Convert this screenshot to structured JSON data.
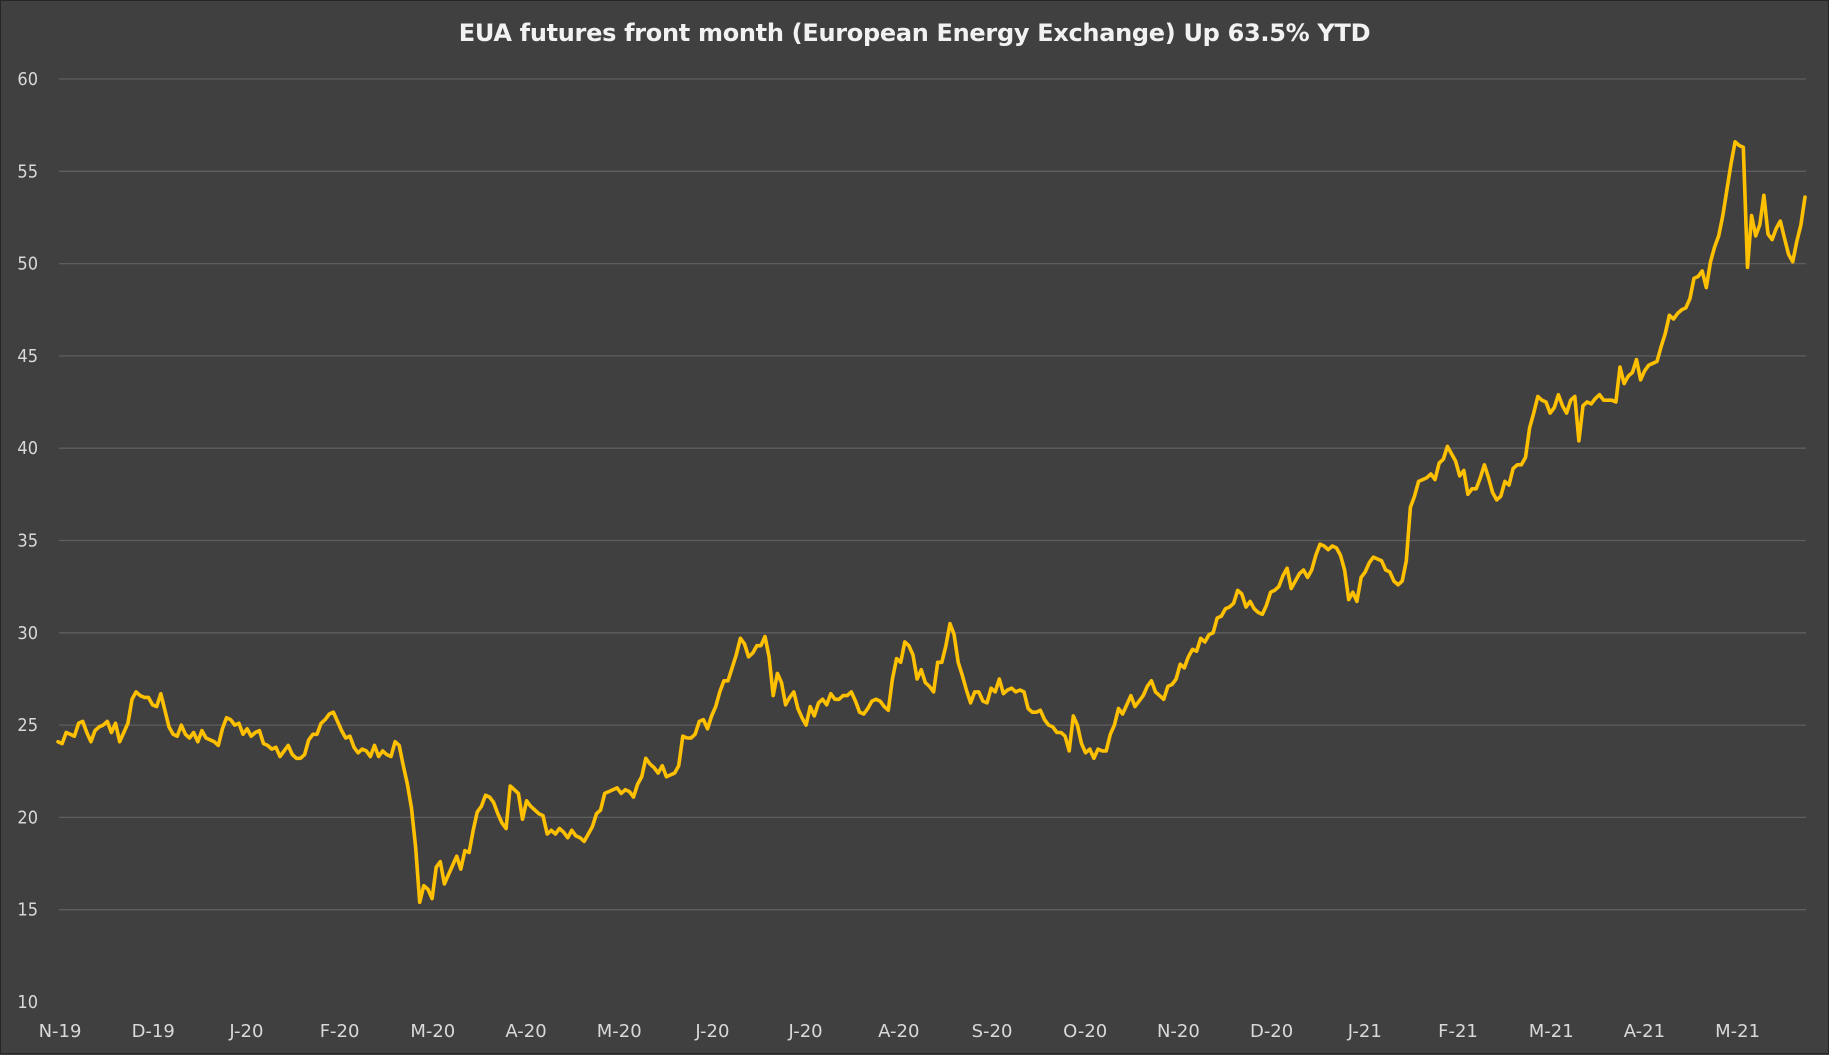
{
  "chart_data": {
    "type": "line",
    "title": "EUA futures front month (European Energy Exchange) Up 63.5% YTD",
    "xlabel": "",
    "ylabel": "",
    "ylim": [
      10,
      60
    ],
    "yticks": [
      10,
      15,
      20,
      25,
      30,
      35,
      40,
      45,
      50,
      55,
      60
    ],
    "xticks": [
      "N-19",
      "D-19",
      "J-20",
      "F-20",
      "M-20",
      "A-20",
      "M-20",
      "J-20",
      "J-20",
      "A-20",
      "S-20",
      "O-20",
      "N-20",
      "D-20",
      "J-21",
      "F-21",
      "M-21",
      "A-21",
      "M-21"
    ],
    "grid": true,
    "legend": "none",
    "line_color": "#FFC000",
    "series": [
      {
        "values": [
          24.1,
          24.0,
          24.6,
          24.5,
          24.4,
          25.1,
          25.2,
          24.6,
          24.1,
          24.7,
          24.9,
          25.0,
          25.2,
          24.6,
          25.1,
          24.1,
          24.6,
          25.1,
          26.4,
          26.8,
          26.6,
          26.5,
          26.5,
          26.1,
          26.0,
          26.7,
          25.8,
          24.9,
          24.5,
          24.4,
          25.0,
          24.5,
          24.3,
          24.6,
          24.1,
          24.7,
          24.3,
          24.2,
          24.1,
          23.9,
          24.8,
          25.4,
          25.3,
          25.0,
          25.1,
          24.5,
          24.8,
          24.4,
          24.6,
          24.7,
          24.0,
          23.9,
          23.7,
          23.8,
          23.3,
          23.6,
          23.9,
          23.4,
          23.2,
          23.2,
          23.4,
          24.2,
          24.5,
          24.5,
          25.1,
          25.3,
          25.6,
          25.7,
          25.2,
          24.7,
          24.3,
          24.4,
          23.8,
          23.5,
          23.7,
          23.6,
          23.3,
          23.9,
          23.3,
          23.6,
          23.4,
          23.3,
          24.1,
          23.9,
          22.8,
          21.8,
          20.5,
          18.4,
          15.4,
          16.3,
          16.1,
          15.6,
          17.3,
          17.6,
          16.4,
          16.9,
          17.4,
          17.9,
          17.2,
          18.2,
          18.1,
          19.3,
          20.3,
          20.6,
          21.2,
          21.1,
          20.8,
          20.2,
          19.7,
          19.4,
          21.7,
          21.5,
          21.3,
          19.9,
          20.9,
          20.6,
          20.4,
          20.2,
          20.1,
          19.1,
          19.3,
          19.1,
          19.4,
          19.2,
          18.9,
          19.3,
          19.0,
          18.9,
          18.7,
          19.1,
          19.5,
          20.2,
          20.4,
          21.3,
          21.4,
          21.5,
          21.6,
          21.3,
          21.5,
          21.4,
          21.1,
          21.8,
          22.2,
          23.2,
          22.9,
          22.7,
          22.4,
          22.8,
          22.2,
          22.3,
          22.4,
          22.8,
          24.4,
          24.3,
          24.3,
          24.5,
          25.2,
          25.3,
          24.8,
          25.5,
          26.0,
          26.8,
          27.4,
          27.4,
          28.1,
          28.8,
          29.7,
          29.4,
          28.7,
          28.9,
          29.3,
          29.3,
          29.8,
          28.7,
          26.6,
          27.8,
          27.3,
          26.1,
          26.5,
          26.8,
          25.9,
          25.4,
          25.0,
          26.0,
          25.5,
          26.2,
          26.4,
          26.1,
          26.7,
          26.4,
          26.4,
          26.6,
          26.6,
          26.8,
          26.3,
          25.7,
          25.6,
          25.9,
          26.3,
          26.4,
          26.3,
          26.0,
          25.8,
          27.5,
          28.6,
          28.4,
          29.5,
          29.3,
          28.8,
          27.5,
          28.0,
          27.3,
          27.1,
          26.8,
          28.4,
          28.4,
          29.3,
          30.5,
          29.9,
          28.4,
          27.7,
          26.9,
          26.2,
          26.8,
          26.8,
          26.3,
          26.2,
          27.0,
          26.8,
          27.5,
          26.7,
          26.9,
          27.0,
          26.8,
          26.9,
          26.8,
          25.9,
          25.7,
          25.7,
          25.8,
          25.3,
          25.0,
          24.9,
          24.6,
          24.6,
          24.4,
          23.6,
          25.5,
          25.0,
          24.0,
          23.5,
          23.7,
          23.2,
          23.7,
          23.6,
          23.6,
          24.5,
          25.0,
          25.9,
          25.6,
          26.1,
          26.6,
          26.0,
          26.3,
          26.6,
          27.1,
          27.4,
          26.8,
          26.6,
          26.4,
          27.1,
          27.2,
          27.5,
          28.3,
          28.1,
          28.7,
          29.1,
          29.0,
          29.7,
          29.5,
          29.9,
          30.0,
          30.8,
          30.9,
          31.3,
          31.4,
          31.6,
          32.3,
          32.1,
          31.4,
          31.7,
          31.3,
          31.1,
          31.0,
          31.5,
          32.2,
          32.3,
          32.5,
          33.1,
          33.5,
          32.4,
          32.8,
          33.2,
          33.4,
          33.0,
          33.4,
          34.2,
          34.8,
          34.7,
          34.5,
          34.7,
          34.6,
          34.2,
          33.4,
          31.8,
          32.2,
          31.7,
          33.0,
          33.3,
          33.8,
          34.1,
          34.0,
          33.9,
          33.4,
          33.3,
          32.8,
          32.6,
          32.8,
          33.9,
          36.8,
          37.4,
          38.2,
          38.3,
          38.4,
          38.6,
          38.3,
          39.2,
          39.4,
          40.1,
          39.7,
          39.3,
          38.5,
          38.8,
          37.5,
          37.8,
          37.8,
          38.4,
          39.1,
          38.4,
          37.6,
          37.2,
          37.4,
          38.2,
          38.0,
          38.9,
          39.1,
          39.1,
          39.5,
          41.1,
          41.9,
          42.8,
          42.6,
          42.5,
          41.9,
          42.2,
          42.9,
          42.3,
          41.9,
          42.6,
          42.8,
          40.4,
          42.3,
          42.5,
          42.4,
          42.7,
          42.9,
          42.6,
          42.6,
          42.6,
          42.5,
          44.4,
          43.5,
          43.9,
          44.1,
          44.8,
          43.7,
          44.2,
          44.5,
          44.6,
          44.7,
          45.5,
          46.2,
          47.2,
          47.0,
          47.3,
          47.5,
          47.6,
          48.1,
          49.2,
          49.3,
          49.6,
          48.7,
          50.1,
          50.9,
          51.5,
          52.6,
          54.0,
          55.4,
          56.6,
          56.4,
          56.3,
          49.8,
          52.6,
          51.5,
          52.1,
          53.7,
          51.6,
          51.3,
          51.9,
          52.3,
          51.4,
          50.5,
          50.1,
          51.2,
          52.1,
          53.6
        ]
      }
    ]
  }
}
